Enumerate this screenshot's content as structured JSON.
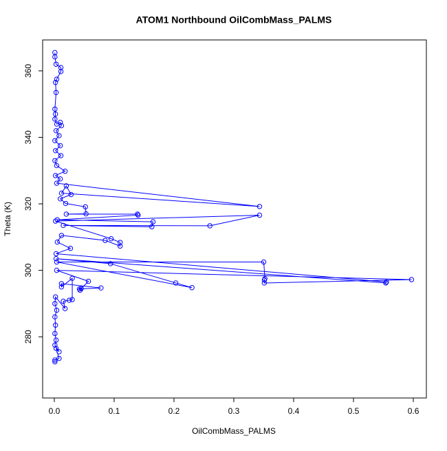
{
  "chart_data": {
    "type": "line",
    "title": "ATOM1 Northbound OilCombMass_PALMS",
    "x_label": "OilCombMass_PALMS",
    "y_label": "Theta (K)",
    "xlim": [
      -0.0195,
      0.6218
    ],
    "ylim": [
      261.6,
      369.3
    ],
    "xticks": [
      {
        "value": 0,
        "label": "0.0"
      },
      0.1,
      0.2,
      0.3,
      0.4,
      0.5,
      0.6
    ],
    "yticks": [
      280,
      300,
      320,
      340,
      360
    ],
    "series": [
      {
        "color": "#0000ff",
        "x": [
          0.001,
          0.001,
          0.003,
          0.011,
          0.011,
          0.004,
          0.002,
          0.003,
          0.001,
          0.002,
          0.001,
          0.004,
          0.01,
          0.012,
          0.003,
          0.008,
          0.001,
          0.01,
          0.002,
          0.011,
          0.001,
          0.004,
          0.018,
          0.002,
          0.01,
          0.004,
          0.343,
          0.012,
          0.02,
          0.028,
          0.01,
          0.019,
          0.052,
          0.053,
          0.02,
          0.139,
          0.14,
          0.005,
          0.165,
          0.163,
          0.015,
          0.26,
          0.343,
          0.002,
          0.095,
          0.11,
          0.11,
          0.085,
          0.012,
          0.005,
          0.027,
          0.003,
          0.555,
          0.554,
          0.003,
          0.094,
          0.203,
          0.23,
          0.004,
          0.35,
          0.352,
          0.351,
          0.351,
          0.597,
          0.004,
          0.057,
          0.045,
          0.043,
          0.042,
          0.078,
          0.012,
          0.012,
          0.03,
          0.03,
          0.025,
          0.015,
          0.018,
          0.002,
          0.001,
          0.004,
          0.001,
          0.002,
          0.001,
          0.003,
          0.001,
          0.008,
          0.003,
          0.008,
          0.001,
          0.001
        ],
        "y": [
          365.5,
          364.2,
          362,
          361,
          359.8,
          357.5,
          356.5,
          353.5,
          348.5,
          347,
          345.5,
          344,
          344.5,
          343.5,
          342,
          340.5,
          339,
          337.5,
          336,
          334.5,
          333,
          331.5,
          329.8,
          328.5,
          327.5,
          326.2,
          319.2,
          323.2,
          325.4,
          322.8,
          321.5,
          320.1,
          319.1,
          317.0,
          316.9,
          316.9,
          316.6,
          315.2,
          314.6,
          313.1,
          313.5,
          313.4,
          316.6,
          314.8,
          309.5,
          308.4,
          307.3,
          309.0,
          310.5,
          308.5,
          306.6,
          305,
          296.5,
          296.2,
          303.5,
          302.0,
          296.2,
          294.8,
          302.5,
          302.5,
          297.5,
          297.1,
          296.2,
          297.2,
          300,
          296.7,
          294.5,
          294.0,
          294.4,
          294.7,
          296.0,
          295.0,
          297.6,
          291.2,
          291.0,
          290.7,
          288.5,
          292,
          290,
          288,
          286,
          283.5,
          281,
          279,
          277.5,
          275.5,
          276.5,
          273.5,
          273,
          272.5
        ]
      }
    ]
  }
}
